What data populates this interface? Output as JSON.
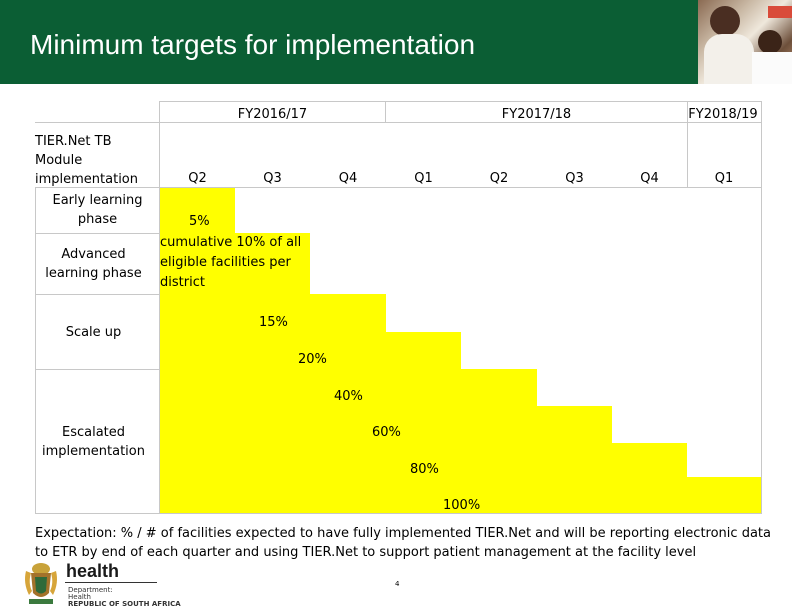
{
  "header": {
    "title": "Minimum targets for implementation",
    "background_color": "#0b5e34"
  },
  "table": {
    "fiscal_years": [
      "FY2016/17",
      "FY2017/18",
      "FY2018/19"
    ],
    "quarters": [
      "Q2",
      "Q3",
      "Q4",
      "Q1",
      "Q2",
      "Q3",
      "Q4",
      "Q1"
    ],
    "corner_label": [
      "TIER.Net TB",
      "Module",
      "implementation"
    ],
    "phases": {
      "early": [
        "Early learning",
        "phase"
      ],
      "advanced": [
        "Advanced",
        "learning phase"
      ],
      "scale": "Scale up",
      "escalated": [
        "Escalated",
        "implementation"
      ]
    },
    "targets": {
      "t1": "5%",
      "t2": [
        "cumulative 10% of all",
        "eligible facilities per",
        "district"
      ],
      "t3": "15%",
      "t4": "20%",
      "t5": "40%",
      "t6": "60%",
      "t7": "80%",
      "t8": "100%"
    },
    "highlight_color": "#ffff00"
  },
  "expectation": "Expectation: % / # of facilities expected to have fully implemented TIER.Net and will be reporting electronic data to ETR by end of each quarter and using TIER.Net to support patient management at the facility level",
  "footer": {
    "brand": "health",
    "department_lines": [
      "Department:",
      "Health",
      "REPUBLIC OF SOUTH AFRICA"
    ],
    "page_number": "4"
  }
}
